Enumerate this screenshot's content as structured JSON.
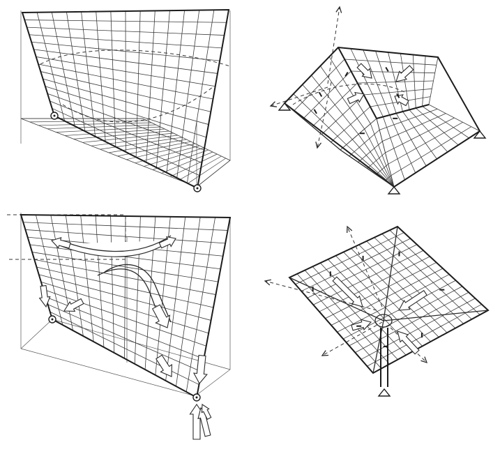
{
  "colors": {
    "ink": "#2a2a2a",
    "paper": "#ffffff"
  },
  "panels": [
    {
      "id": "hypar-top-left"
    },
    {
      "id": "folded-shell-top-right"
    },
    {
      "id": "hypar-force-bottom-left"
    },
    {
      "id": "folded-shell-bottom-right"
    }
  ]
}
